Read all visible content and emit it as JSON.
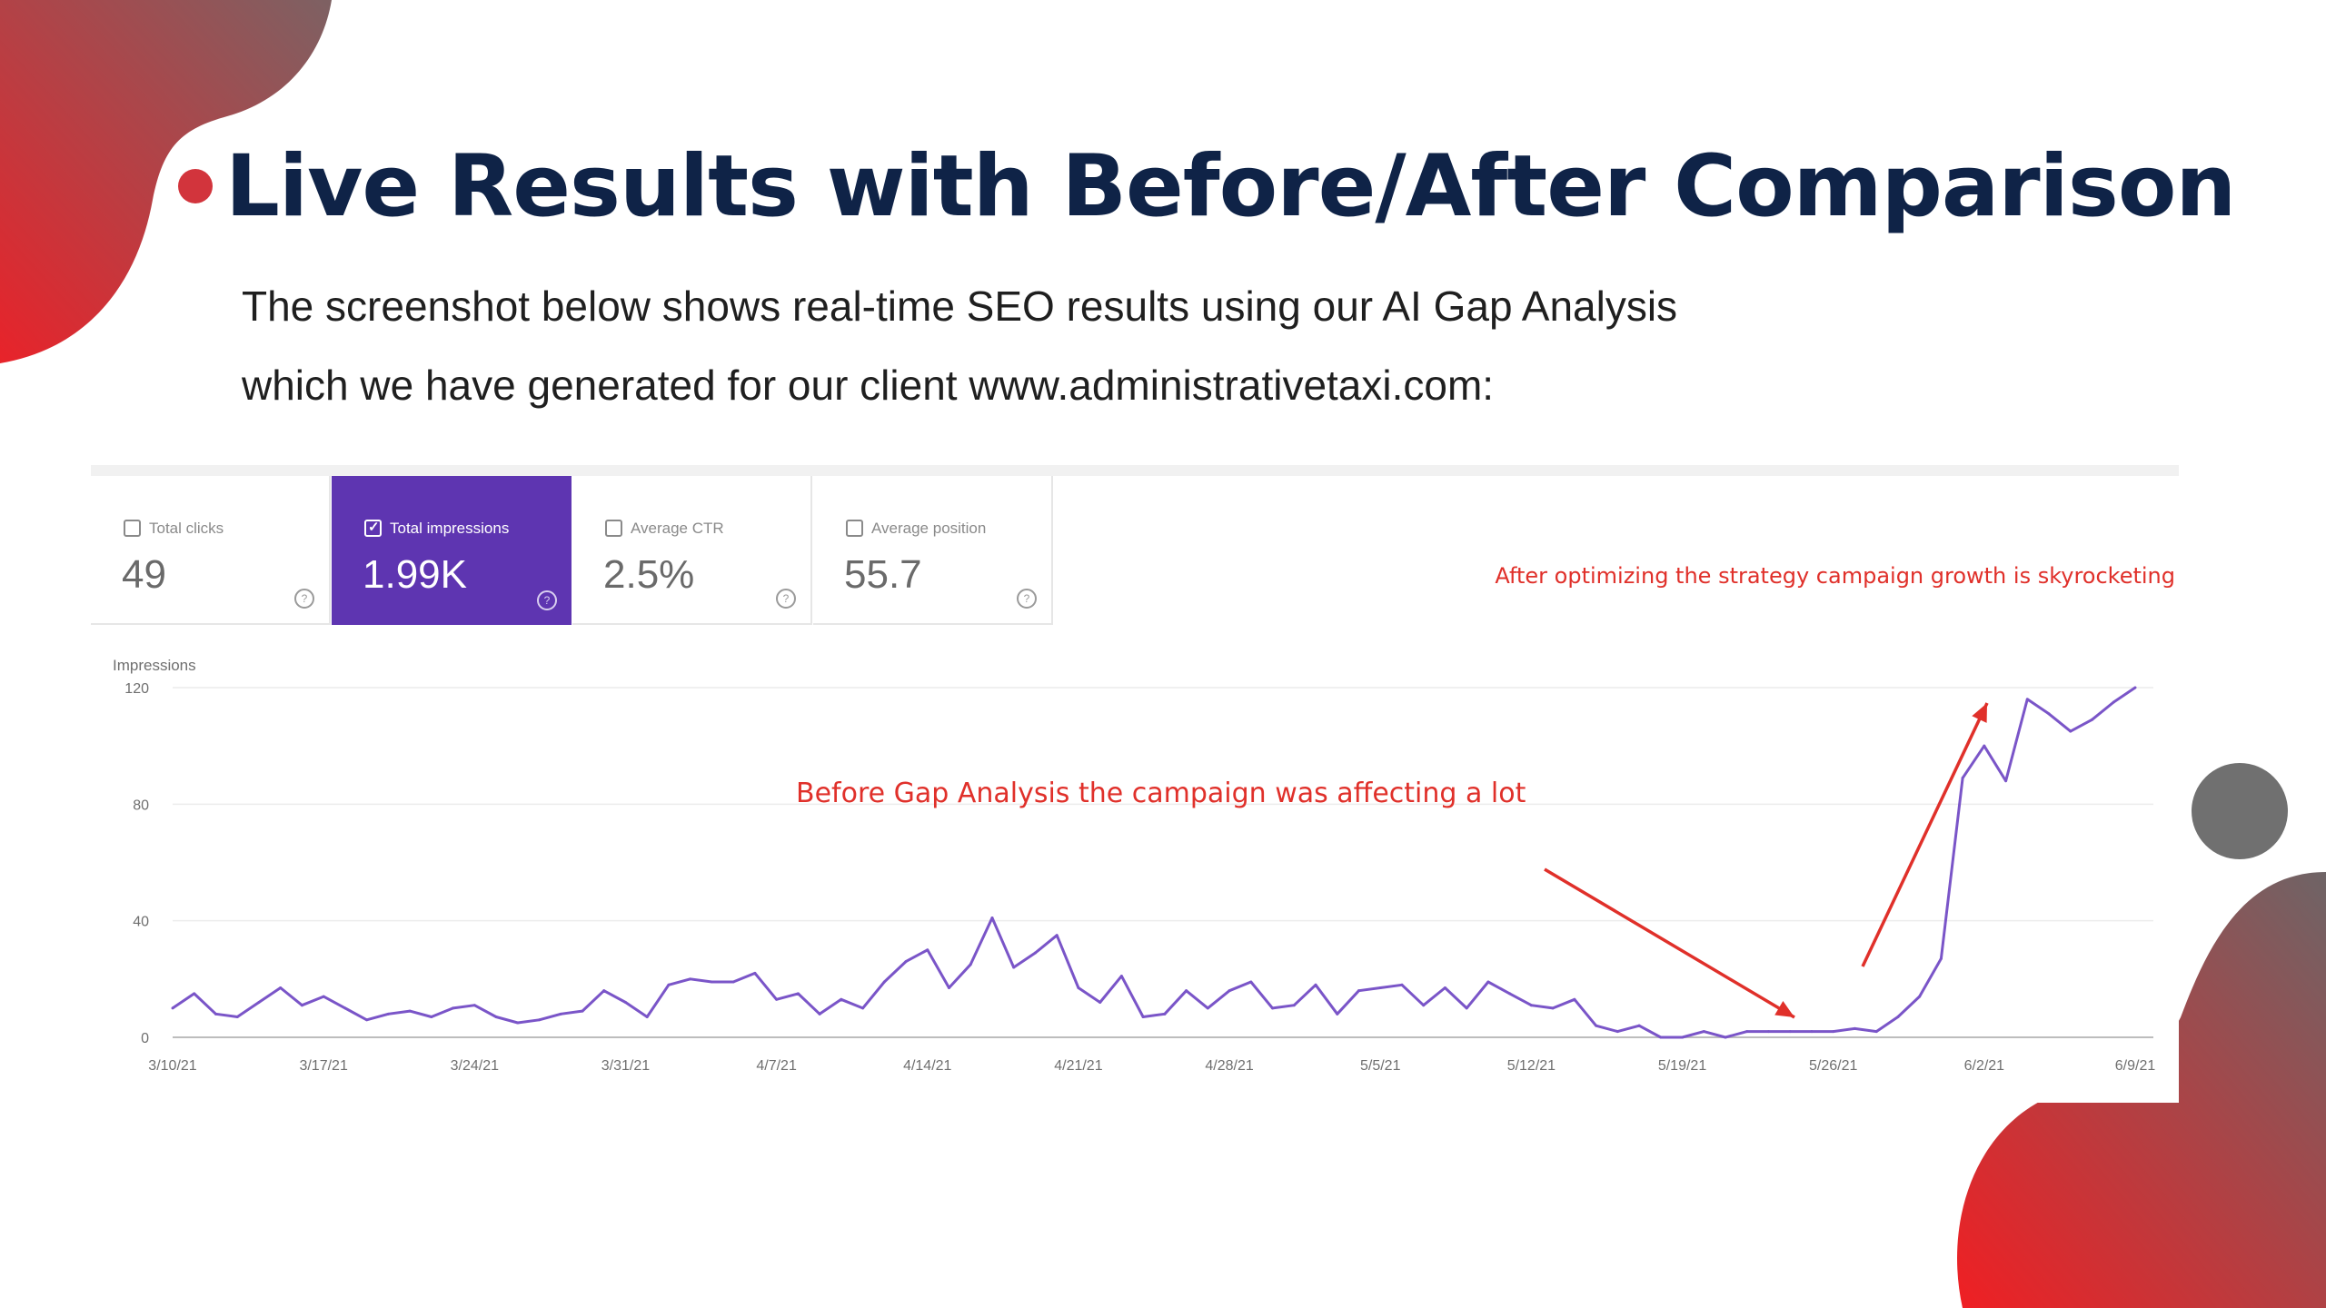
{
  "slide": {
    "title": "Live Results with Before/After Comparison",
    "subtitle_line1": "The screenshot below shows real-time SEO results using our AI Gap Analysis",
    "subtitle_line2": "which we have generated for our client www.administrativetaxi.com:"
  },
  "colors": {
    "title": "#0f2347",
    "accent_red": "#d2343c",
    "selected_card": "#5e35b1",
    "line": "#7a55c8",
    "annotation": "#e0302a",
    "decor_grey": "#6e6e6e"
  },
  "metrics": [
    {
      "label": "Total clicks",
      "value": "49",
      "selected": false
    },
    {
      "label": "Total impressions",
      "value": "1.99K",
      "selected": true
    },
    {
      "label": "Average CTR",
      "value": "2.5%",
      "selected": false
    },
    {
      "label": "Average position",
      "value": "55.7",
      "selected": false
    }
  ],
  "annotations": {
    "after": "After optimizing the strategy campaign growth is skyrocketing",
    "before": "Before Gap Analysis the campaign was affecting a lot"
  },
  "icons": {
    "checkbox": "checkbox-icon",
    "help": "help-circle-icon",
    "arrow": "arrow-icon"
  },
  "help_glyph": "?",
  "chart_data": {
    "type": "line",
    "ylabel": "Impressions",
    "ylim": [
      0,
      120
    ],
    "yticks": [
      "120",
      "80",
      "40",
      "0"
    ],
    "x_tick_labels": [
      "3/10/21",
      "3/17/21",
      "3/24/21",
      "3/31/21",
      "4/7/21",
      "4/14/21",
      "4/21/21",
      "4/28/21",
      "5/5/21",
      "5/12/21",
      "5/19/21",
      "5/26/21",
      "6/2/21",
      "6/9/21"
    ],
    "x_start": "3/10/21",
    "x_end": "6/9/21",
    "grid": true,
    "series": [
      {
        "values": [
          10,
          15,
          8,
          7,
          12,
          17,
          11,
          14,
          10,
          6,
          8,
          9,
          7,
          10,
          11,
          7,
          5,
          6,
          8,
          9,
          16,
          12,
          7,
          18,
          20,
          19,
          19,
          22,
          13,
          15,
          8,
          13,
          10,
          19,
          26,
          30,
          17,
          25,
          41,
          24,
          29,
          35,
          17,
          12,
          21,
          7,
          8,
          16,
          10,
          16,
          19,
          10,
          11,
          18,
          8,
          16,
          17,
          18,
          11,
          17,
          10,
          19,
          15,
          11,
          10,
          13,
          4,
          2,
          4,
          0,
          0,
          2,
          0,
          2,
          2,
          2,
          2,
          2,
          3,
          2,
          7,
          14,
          27,
          89,
          100,
          88,
          116,
          111,
          105,
          109,
          115,
          120
        ]
      }
    ]
  }
}
